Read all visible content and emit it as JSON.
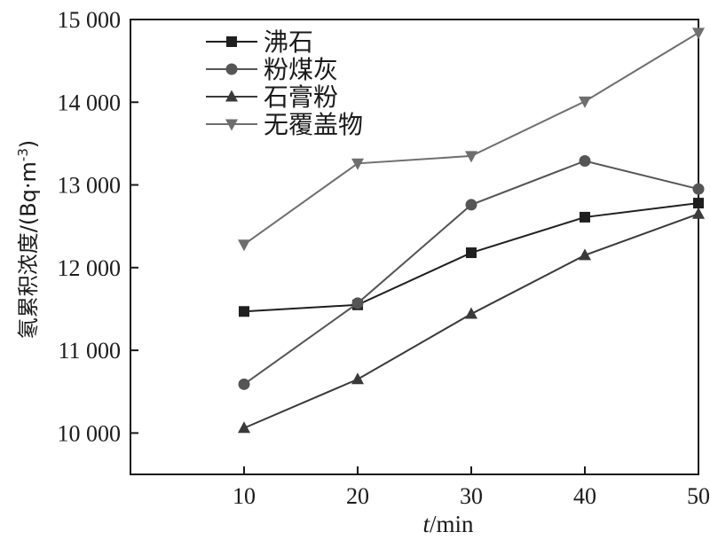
{
  "chart_data": {
    "type": "line",
    "x": [
      10,
      20,
      30,
      40,
      50
    ],
    "xlim": [
      0,
      50
    ],
    "ylim": [
      9500,
      15000
    ],
    "xticks": [
      10,
      20,
      30,
      40,
      50
    ],
    "yticks": [
      10000,
      11000,
      12000,
      13000,
      14000,
      15000
    ],
    "xtick_labels": [
      "10",
      "20",
      "30",
      "40",
      "50"
    ],
    "ytick_labels": [
      "10 000",
      "11 000",
      "12 000",
      "13 000",
      "14 000",
      "15 000"
    ],
    "xlabel": {
      "var": "t",
      "unit": "/min"
    },
    "ylabel": {
      "text": "氡累积浓度/(Bq·m",
      "sup": "-3",
      "close": ")"
    },
    "grid": false,
    "legend_position": "top-left",
    "series": [
      {
        "name": "沸石",
        "marker": "square",
        "color": "#1f1f1f",
        "values": [
          11470,
          11550,
          12180,
          12610,
          12780
        ]
      },
      {
        "name": "粉煤灰",
        "marker": "circle",
        "color": "#555555",
        "values": [
          10590,
          11570,
          12760,
          13290,
          12950
        ]
      },
      {
        "name": "石膏粉",
        "marker": "triangle-up",
        "color": "#3a3a3a",
        "values": [
          10060,
          10650,
          11440,
          12150,
          12650
        ]
      },
      {
        "name": "无覆盖物",
        "marker": "triangle-down",
        "color": "#6e6e6e",
        "values": [
          12280,
          13260,
          13350,
          14010,
          14840
        ]
      }
    ]
  }
}
